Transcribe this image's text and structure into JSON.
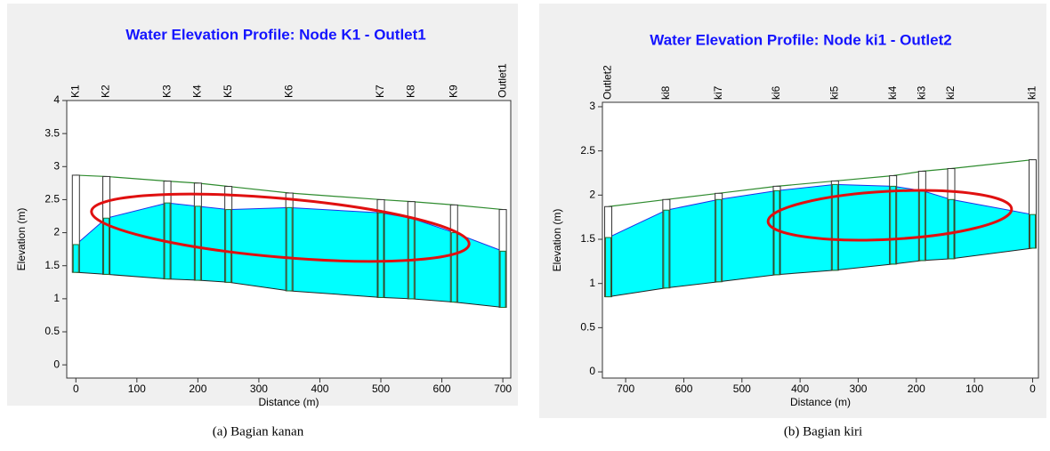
{
  "chart_data": [
    {
      "type": "profile",
      "title": "Water Elevation Profile: Node K1 - Outlet1",
      "x_label": "Distance (m)",
      "y_label": "Elevation (m)",
      "caption": "(a) Bagian kanan",
      "categories": [
        "K1",
        "K2",
        "K3",
        "K4",
        "K5",
        "K6",
        "K7",
        "K8",
        "K9",
        "Outlet1"
      ],
      "x": [
        0,
        50,
        150,
        200,
        250,
        350,
        500,
        550,
        620,
        700
      ],
      "invert": [
        1.4,
        1.37,
        1.3,
        1.28,
        1.25,
        1.12,
        1.02,
        1.0,
        0.95,
        0.87
      ],
      "ground": [
        2.87,
        2.85,
        2.78,
        2.75,
        2.7,
        2.6,
        2.5,
        2.47,
        2.42,
        2.35
      ],
      "water": [
        1.82,
        2.22,
        2.45,
        2.4,
        2.35,
        2.38,
        2.3,
        2.22,
        2.0,
        1.72
      ],
      "water_color": "#00ffff",
      "water_line_color": "#1e2ee8",
      "ground_color": "#2e8b2e",
      "xlim": [
        -15,
        713
      ],
      "ylim": [
        -0.2,
        4
      ],
      "xticks": [
        0,
        100,
        200,
        300,
        400,
        500,
        600,
        700
      ],
      "yticks": [
        0,
        0.5,
        1,
        1.5,
        2,
        2.5,
        3,
        3.5,
        4
      ]
    },
    {
      "type": "profile",
      "title": "Water Elevation Profile: Node ki1 - Outlet2",
      "x_label": "Distance (m)",
      "y_label": "Elevation (m)",
      "caption": "(b) Bagian kiri",
      "categories": [
        "Outlet2",
        "ki8",
        "ki7",
        "ki6",
        "ki5",
        "ki4",
        "ki3",
        "ki2",
        "ki1"
      ],
      "x": [
        730,
        630,
        540,
        440,
        340,
        240,
        190,
        140,
        0
      ],
      "invert": [
        0.85,
        0.95,
        1.02,
        1.1,
        1.15,
        1.22,
        1.26,
        1.28,
        1.4
      ],
      "ground": [
        1.87,
        1.95,
        2.02,
        2.1,
        2.16,
        2.22,
        2.27,
        2.3,
        2.4
      ],
      "water": [
        1.52,
        1.83,
        1.95,
        2.05,
        2.12,
        2.1,
        2.05,
        1.95,
        1.78
      ],
      "water_color": "#00ffff",
      "water_line_color": "#1e2ee8",
      "ground_color": "#2e8b2e",
      "xlim": [
        740,
        -10
      ],
      "ylim": [
        -0.07,
        3.05
      ],
      "xticks": [
        700,
        600,
        500,
        400,
        300,
        200,
        100,
        0
      ],
      "yticks": [
        0,
        0.5,
        1,
        1.5,
        2,
        2.5,
        3
      ]
    }
  ]
}
